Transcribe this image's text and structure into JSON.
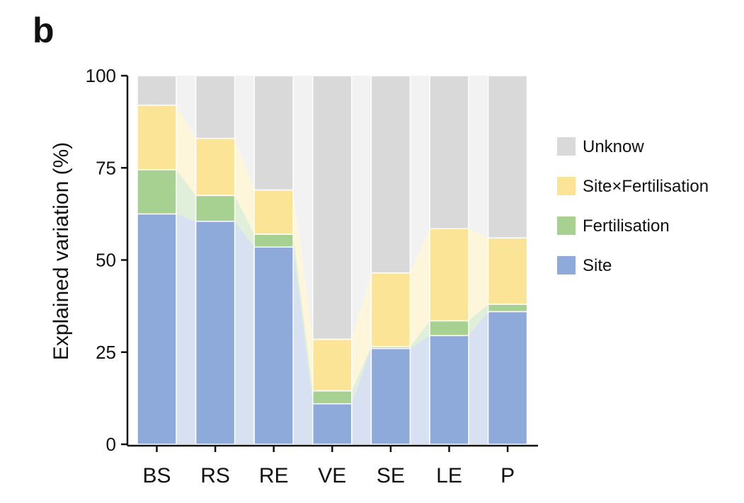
{
  "panel_label": "b",
  "colors": {
    "Unknow": "#d9d9d9",
    "Site×Fertilisation": "#fce497",
    "Fertilisation": "#a7d191",
    "Site": "#8eaadb"
  },
  "chart_data": {
    "type": "bar",
    "stacked": true,
    "title": "",
    "xlabel": "",
    "ylabel": "Explained variation (%)",
    "ylim": [
      0,
      100
    ],
    "yticks": [
      0,
      25,
      50,
      75,
      100
    ],
    "categories": [
      "BS",
      "RS",
      "RE",
      "VE",
      "SE",
      "LE",
      "P"
    ],
    "series": [
      {
        "name": "Site",
        "values": [
          62.5,
          60.5,
          53.5,
          11.0,
          26.0,
          29.5,
          36.0
        ]
      },
      {
        "name": "Fertilisation",
        "values": [
          12.0,
          7.0,
          3.5,
          3.5,
          0.5,
          4.0,
          2.0
        ]
      },
      {
        "name": "Site×Fertilisation",
        "values": [
          17.5,
          15.5,
          12.0,
          14.0,
          20.0,
          25.0,
          18.0
        ]
      },
      {
        "name": "Unknow",
        "values": [
          8.0,
          17.0,
          31.0,
          71.5,
          53.5,
          41.5,
          44.0
        ]
      }
    ],
    "legend": [
      "Unknow",
      "Site×Fertilisation",
      "Fertilisation",
      "Site"
    ],
    "legend_position": "right",
    "grid": false
  }
}
